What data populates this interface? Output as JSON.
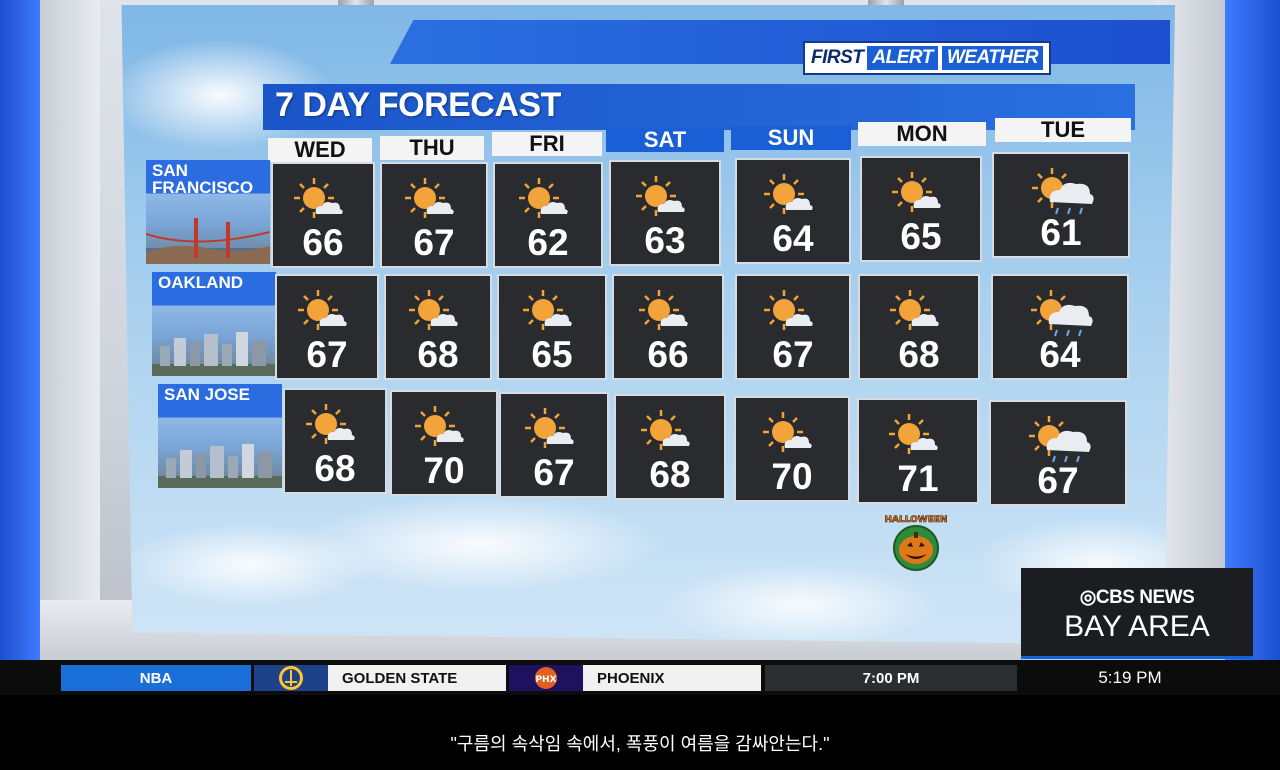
{
  "branding": {
    "first": "FIRST",
    "alert": "ALERT",
    "weather": "WEATHER"
  },
  "title": "7 DAY FORECAST",
  "days": [
    "WED",
    "THU",
    "FRI",
    "SAT",
    "SUN",
    "MON",
    "TUE"
  ],
  "cities": [
    {
      "name_line1": "SAN",
      "name_line2": "FRANCISCO",
      "temps": [
        "66",
        "67",
        "62",
        "63",
        "64",
        "65",
        "61"
      ]
    },
    {
      "name_line1": "OAKLAND",
      "name_line2": "",
      "temps": [
        "67",
        "68",
        "65",
        "66",
        "67",
        "68",
        "64"
      ]
    },
    {
      "name_line1": "SAN JOSE",
      "name_line2": "",
      "temps": [
        "68",
        "70",
        "67",
        "68",
        "70",
        "71",
        "67"
      ]
    }
  ],
  "icons": [
    "partly-sunny-icon",
    "partly-sunny-icon",
    "partly-sunny-icon",
    "partly-sunny-icon",
    "partly-sunny-icon",
    "partly-sunny-icon",
    "showers-icon"
  ],
  "halloween": "HALLOWEEN",
  "network": {
    "line1": "CBS NEWS",
    "line2": "BAY AREA"
  },
  "ticker": {
    "league": "NBA",
    "team1": "GOLDEN STATE",
    "team2": "PHOENIX",
    "team2_logo": "PHX",
    "game_time": "7:00 PM",
    "clock": "5:19 PM"
  },
  "subtitle": "\"구름의 속삭임 속에서, 폭풍이 여름을 감싸안는다.\"",
  "colors": {
    "accent": "#1b5fd6",
    "cell_bg": "#2a2b2e",
    "sun": "#f2a43a"
  }
}
